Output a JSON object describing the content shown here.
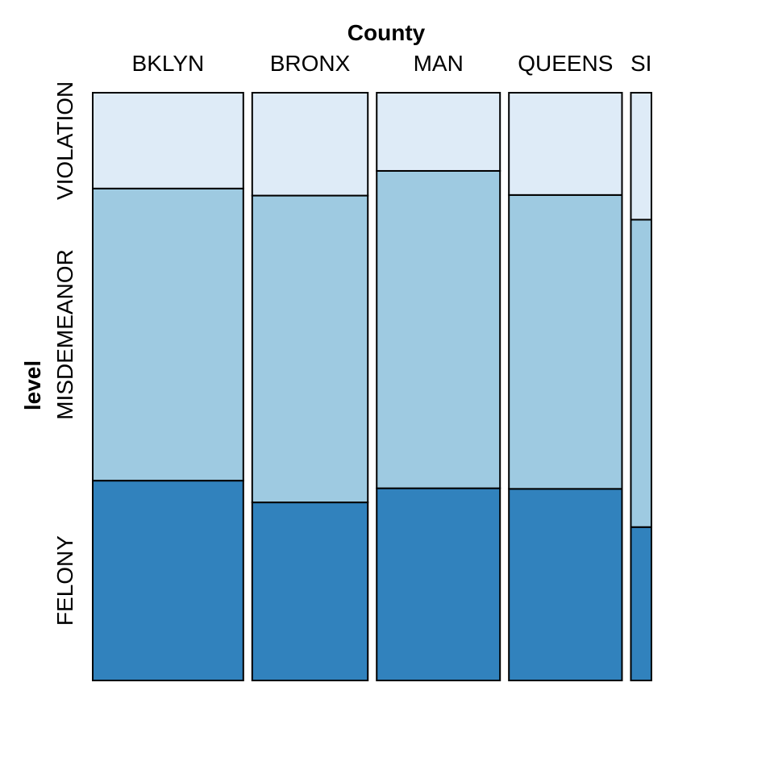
{
  "chart_data": {
    "type": "mosaic",
    "title": "",
    "x_variable": "County",
    "y_variable": "level",
    "categories": [
      "BKLYN",
      "BRONX",
      "MAN",
      "QUEENS",
      "SI"
    ],
    "column_proportions": [
      0.2727,
      0.2094,
      0.2233,
      0.2048,
      0.0372
    ],
    "levels": [
      "FELONY",
      "MISDEMEANOR",
      "VIOLATION"
    ],
    "series": [
      {
        "name": "FELONY",
        "values": [
          0.34,
          0.303,
          0.327,
          0.326,
          0.261
        ],
        "color": "#3182BD"
      },
      {
        "name": "MISDEMEANOR",
        "values": [
          0.497,
          0.522,
          0.54,
          0.5,
          0.523
        ],
        "color": "#9ECAE1"
      },
      {
        "name": "VIOLATION",
        "values": [
          0.163,
          0.175,
          0.133,
          0.174,
          0.216
        ],
        "color": "#DEEBF7"
      }
    ]
  }
}
